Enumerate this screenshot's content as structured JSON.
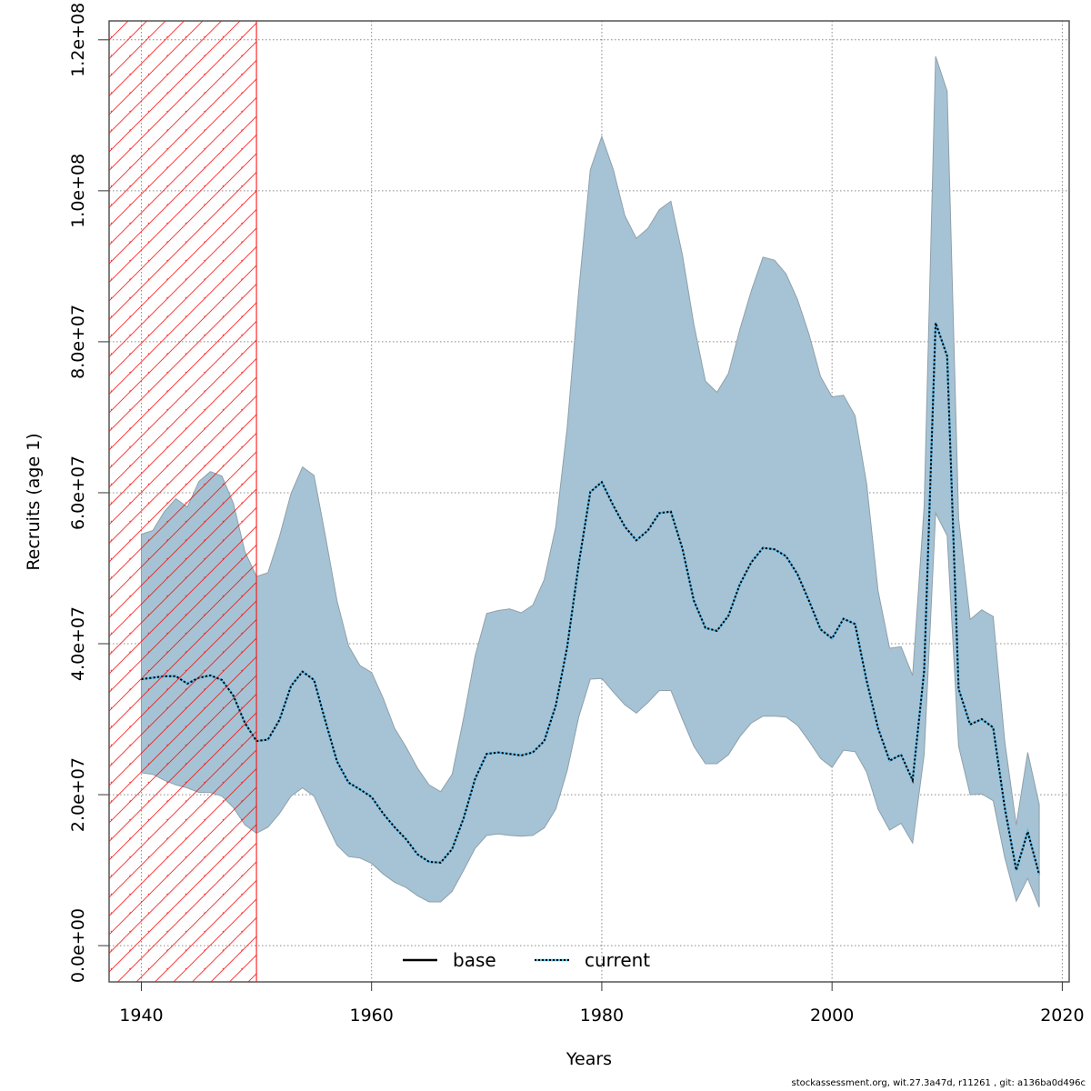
{
  "chart_data": {
    "type": "area",
    "title": "",
    "xlabel": "Years",
    "ylabel": "Recruits (age 1)",
    "xlim": [
      1937.2,
      2020.6
    ],
    "ylim": [
      -4800000,
      122500000
    ],
    "xticks": [
      1940,
      1960,
      1980,
      2000,
      2020
    ],
    "xtick_labels": [
      "1940",
      "1960",
      "1980",
      "2000",
      "2020"
    ],
    "yticks": [
      0,
      20000000,
      40000000,
      60000000,
      80000000,
      100000000,
      120000000
    ],
    "ytick_labels": [
      "0.0e+00",
      "2.0e+07",
      "4.0e+07",
      "6.0e+07",
      "8.0e+07",
      "1.0e+08",
      "1.2e+08"
    ],
    "grid": true,
    "shaded_period": {
      "from": 1937.2,
      "to": 1950,
      "pattern": "hatched",
      "color": "#ff0000"
    },
    "legend": {
      "placement": "bottom-center",
      "entries": [
        {
          "label": "base",
          "style": "solid",
          "color": "#000000"
        },
        {
          "label": "current",
          "style": "dotted",
          "color": "#000000",
          "halo": "#5bb8e8"
        }
      ]
    },
    "band_color": "#a5c3d4",
    "band_edge_color": "#8fa0aa",
    "years": [
      1940,
      1941,
      1942,
      1943,
      1944,
      1945,
      1946,
      1947,
      1948,
      1949,
      1950,
      1951,
      1952,
      1953,
      1954,
      1955,
      1956,
      1957,
      1958,
      1959,
      1960,
      1961,
      1962,
      1963,
      1964,
      1965,
      1966,
      1967,
      1968,
      1969,
      1970,
      1971,
      1972,
      1973,
      1974,
      1975,
      1976,
      1977,
      1978,
      1979,
      1980,
      1981,
      1982,
      1983,
      1984,
      1985,
      1986,
      1987,
      1988,
      1989,
      1990,
      1991,
      1992,
      1993,
      1994,
      1995,
      1996,
      1997,
      1998,
      1999,
      2000,
      2001,
      2002,
      2003,
      2004,
      2005,
      2006,
      2007,
      2008,
      2009,
      2010,
      2011,
      2012,
      2013,
      2014,
      2015,
      2016,
      2017,
      2018
    ],
    "series": [
      {
        "name": "current",
        "values": [
          35300000,
          35500000,
          35700000,
          35700000,
          34700000,
          35500000,
          35800000,
          35200000,
          33100000,
          29500000,
          27100000,
          27300000,
          29900000,
          34400000,
          36300000,
          35200000,
          29700000,
          24400000,
          21600000,
          20700000,
          19700000,
          17500000,
          15700000,
          14100000,
          12100000,
          11100000,
          11000000,
          12800000,
          16900000,
          22100000,
          25400000,
          25600000,
          25400000,
          25200000,
          25600000,
          27100000,
          31800000,
          39600000,
          50600000,
          60100000,
          61400000,
          58300000,
          55500000,
          53700000,
          55000000,
          57300000,
          57500000,
          52600000,
          45700000,
          42100000,
          41700000,
          43700000,
          47900000,
          50800000,
          52700000,
          52500000,
          51600000,
          49200000,
          45700000,
          41900000,
          40700000,
          43300000,
          42600000,
          35100000,
          28800000,
          24500000,
          25300000,
          21900000,
          36400000,
          82500000,
          78100000,
          34000000,
          29300000,
          30000000,
          28900000,
          18300000,
          10000000,
          15100000,
          9400000
        ]
      },
      {
        "name": "base",
        "values": [
          35300000,
          35500000,
          35700000,
          35700000,
          34700000,
          35500000,
          35800000,
          35200000,
          33100000,
          29500000,
          27100000,
          27300000,
          29900000,
          34400000,
          36300000,
          35200000,
          29700000,
          24400000,
          21600000,
          20700000,
          19700000,
          17500000,
          15700000,
          14100000,
          12100000,
          11100000,
          11000000,
          12800000,
          16900000,
          22100000,
          25400000,
          25600000,
          25400000,
          25200000,
          25600000,
          27100000,
          31800000,
          39600000,
          50600000,
          60100000,
          61400000,
          58300000,
          55500000,
          53700000,
          55000000,
          57300000,
          57500000,
          52600000,
          45700000,
          42100000,
          41700000,
          43700000,
          47900000,
          50800000,
          52700000,
          52500000,
          51600000,
          49200000,
          45700000,
          41900000,
          40700000,
          43300000,
          42600000,
          35100000,
          28800000,
          24500000,
          25300000,
          21900000,
          36400000,
          82500000,
          78100000,
          34000000,
          29300000,
          30000000,
          28900000,
          18300000,
          10000000,
          15100000,
          9400000
        ]
      },
      {
        "name": "upper",
        "values": [
          54500000,
          55000000,
          57500000,
          59200000,
          58100000,
          61500000,
          62800000,
          62200000,
          58600000,
          52200000,
          48900000,
          49400000,
          54200000,
          59900000,
          63400000,
          62300000,
          54200000,
          45700000,
          39700000,
          37100000,
          36200000,
          32800000,
          28800000,
          26300000,
          23500000,
          21300000,
          20400000,
          22700000,
          30200000,
          38400000,
          44000000,
          44400000,
          44600000,
          44100000,
          45100000,
          48500000,
          55500000,
          68700000,
          86800000,
          102800000,
          107200000,
          102800000,
          96700000,
          93700000,
          95000000,
          97500000,
          98600000,
          91500000,
          82300000,
          74800000,
          73300000,
          75800000,
          81700000,
          86800000,
          91200000,
          90800000,
          89000000,
          85600000,
          81000000,
          75400000,
          72700000,
          72900000,
          70200000,
          61200000,
          47000000,
          39400000,
          39600000,
          35800000,
          58200000,
          117800000,
          113200000,
          56600000,
          43200000,
          44500000,
          43600000,
          27100000,
          16000000,
          25600000,
          18700000
        ]
      },
      {
        "name": "lower",
        "values": [
          22900000,
          22700000,
          21900000,
          21300000,
          20900000,
          20300000,
          20300000,
          19800000,
          18300000,
          16000000,
          14900000,
          15700000,
          17500000,
          19800000,
          20900000,
          19800000,
          16500000,
          13300000,
          11800000,
          11600000,
          10900000,
          9500000,
          8400000,
          7700000,
          6600000,
          5800000,
          5800000,
          7200000,
          10000000,
          12900000,
          14600000,
          14800000,
          14600000,
          14500000,
          14600000,
          15600000,
          18100000,
          23200000,
          30300000,
          35300000,
          35400000,
          33600000,
          31900000,
          30800000,
          32200000,
          33800000,
          33800000,
          30000000,
          26400000,
          24100000,
          24100000,
          25300000,
          27700000,
          29500000,
          30400000,
          30400000,
          30300000,
          29200000,
          27100000,
          24800000,
          23600000,
          25900000,
          25700000,
          23000000,
          18100000,
          15300000,
          16200000,
          13600000,
          25300000,
          57300000,
          54300000,
          26400000,
          20000000,
          20100000,
          19200000,
          11700000,
          5900000,
          8900000,
          5100000
        ]
      }
    ]
  },
  "footer": {
    "text": "stockassessment.org, wit.27.3a47d, r11261 , git: a136ba0d496c"
  }
}
